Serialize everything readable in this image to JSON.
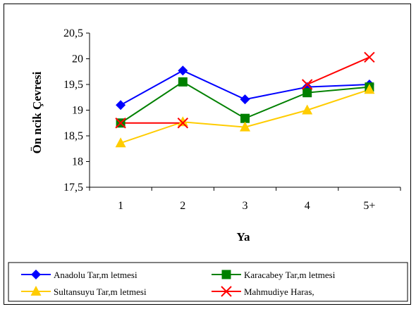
{
  "chart_data": {
    "type": "line",
    "categories": [
      "1",
      "2",
      "3",
      "4",
      "5+"
    ],
    "xlabel": "Ya",
    "ylabel": "Ön   ncik Çevresi",
    "ylim": [
      17.5,
      20.5
    ],
    "yticks": [
      "20,5",
      "20",
      "19,5",
      "19",
      "18,5",
      "18",
      "17,5"
    ],
    "ytick_values": [
      20.5,
      20,
      19.5,
      19,
      18.5,
      18,
      17.5
    ],
    "grid": false,
    "legend_position": "bottom",
    "series": [
      {
        "name": "Anadolu Tar,m    letmesi",
        "color": "#0000ff",
        "marker": "diamond",
        "values": [
          19.1,
          19.77,
          19.21,
          19.45,
          19.5
        ]
      },
      {
        "name": "Karacabey Tar,m    letmesi",
        "color": "#008000",
        "marker": "square",
        "values": [
          18.75,
          19.55,
          18.84,
          19.34,
          19.45
        ]
      },
      {
        "name": "Sultansuyu Tar,m    letmesi",
        "color": "#ffcc00",
        "marker": "triangle",
        "values": [
          18.36,
          18.77,
          18.67,
          19.0,
          19.4
        ]
      },
      {
        "name": "Mahmudiye Haras,",
        "color": "#ff0000",
        "marker": "x",
        "values": [
          18.75,
          18.75,
          null,
          19.5,
          20.03
        ]
      }
    ]
  }
}
